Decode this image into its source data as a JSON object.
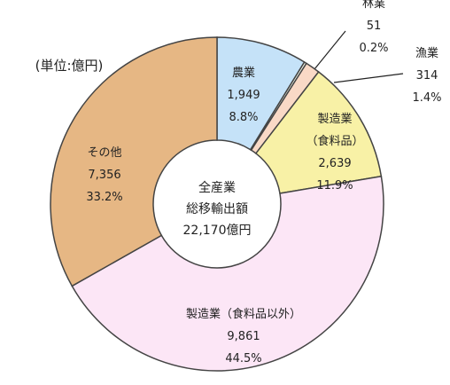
{
  "chart_data": {
    "type": "donut",
    "unit_label": "(単位:億円)",
    "center_label": "全産業\n総移輸出額",
    "total_label": "22,170億円",
    "categories": [
      "農業",
      "林業",
      "漁業",
      "製造業\n（食料品）",
      "製造業（食料品以外）",
      "その他"
    ],
    "values": [
      1949,
      51,
      314,
      2639,
      9861,
      7356
    ],
    "value_labels": [
      "1,949",
      "51",
      "314",
      "2,639",
      "9,861",
      "7,356"
    ],
    "percents": [
      8.8,
      0.2,
      1.4,
      11.9,
      44.5,
      33.2
    ],
    "percent_labels": [
      "8.8%",
      "0.2%",
      "1.4%",
      "11.9%",
      "44.5%",
      "33.2%"
    ],
    "colors": [
      "#c5e2f8",
      "#f3f6e8",
      "#f9d9c6",
      "#f8f1a6",
      "#fce6f6",
      "#e6b784"
    ]
  }
}
